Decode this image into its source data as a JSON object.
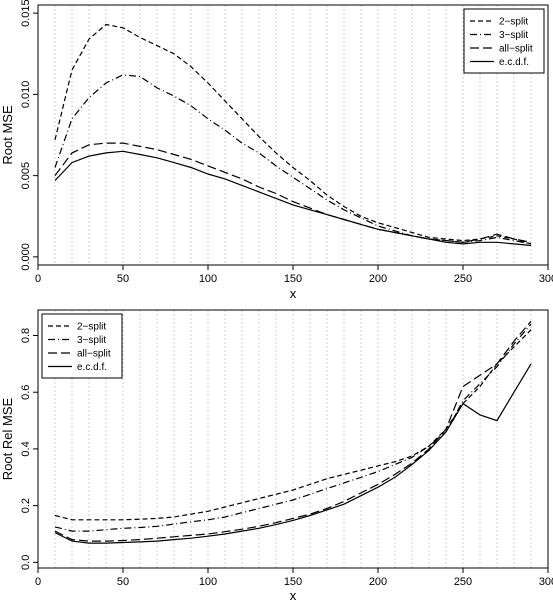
{
  "chart_data": [
    {
      "type": "line",
      "xlabel": "x",
      "ylabel": "Root MSE",
      "xlim": [
        0,
        300
      ],
      "ylim": [
        -0.0005,
        0.0155
      ],
      "xticks": [
        0,
        50,
        100,
        150,
        200,
        250,
        300
      ],
      "yticks": [
        0.0,
        0.005,
        0.01,
        0.015
      ],
      "ytick_labels": [
        "0.000",
        "0.005",
        "0.010",
        "0.015"
      ],
      "grid_x": [
        10,
        20,
        30,
        40,
        50,
        60,
        70,
        80,
        90,
        100,
        110,
        120,
        130,
        140,
        150,
        160,
        170,
        180,
        190,
        200,
        210,
        220,
        230,
        240,
        250,
        260,
        270,
        280,
        290
      ],
      "legend_position": "top-right",
      "x": [
        10,
        20,
        30,
        40,
        50,
        60,
        70,
        80,
        90,
        100,
        110,
        120,
        130,
        140,
        150,
        160,
        170,
        180,
        190,
        200,
        210,
        220,
        230,
        240,
        250,
        260,
        270,
        280,
        290
      ],
      "series": [
        {
          "name": "2−split",
          "dash": "5,3",
          "values": [
            0.0072,
            0.0115,
            0.0134,
            0.0143,
            0.0141,
            0.0135,
            0.013,
            0.0125,
            0.0117,
            0.0107,
            0.0096,
            0.0085,
            0.0074,
            0.0064,
            0.0055,
            0.0047,
            0.0038,
            0.0031,
            0.0025,
            0.0021,
            0.0018,
            0.0015,
            0.0012,
            0.0011,
            0.001,
            0.0011,
            0.0013,
            0.0011,
            0.0008
          ]
        },
        {
          "name": "3−split",
          "dash": "7,3,1,3",
          "values": [
            0.0055,
            0.0085,
            0.0098,
            0.0107,
            0.0112,
            0.0111,
            0.0104,
            0.0099,
            0.0093,
            0.0085,
            0.0078,
            0.007,
            0.0064,
            0.0056,
            0.0049,
            0.0042,
            0.0035,
            0.0029,
            0.0024,
            0.0019,
            0.0016,
            0.0013,
            0.0011,
            0.001,
            0.0009,
            0.001,
            0.0012,
            0.001,
            0.0008
          ]
        },
        {
          "name": "all−split",
          "dash": "9,4",
          "values": [
            0.005,
            0.0064,
            0.0069,
            0.007,
            0.007,
            0.0068,
            0.0066,
            0.0063,
            0.006,
            0.0056,
            0.0052,
            0.0048,
            0.0043,
            0.0039,
            0.0034,
            0.003,
            0.0026,
            0.0023,
            0.002,
            0.0017,
            0.0015,
            0.0013,
            0.0011,
            0.001,
            0.0009,
            0.0011,
            0.0014,
            0.0011,
            0.0009
          ]
        },
        {
          "name": "e.c.d.f.",
          "dash": "",
          "values": [
            0.0047,
            0.0058,
            0.0062,
            0.0064,
            0.0065,
            0.0063,
            0.0061,
            0.0058,
            0.0055,
            0.0051,
            0.0048,
            0.0044,
            0.004,
            0.0036,
            0.0032,
            0.0029,
            0.0026,
            0.0023,
            0.002,
            0.0017,
            0.0015,
            0.0013,
            0.0011,
            0.0009,
            0.0008,
            0.0009,
            0.0009,
            0.0008,
            0.0007
          ]
        }
      ]
    },
    {
      "type": "line",
      "xlabel": "x",
      "ylabel": "Root Rel MSE",
      "xlim": [
        0,
        300
      ],
      "ylim": [
        -0.02,
        0.89
      ],
      "xticks": [
        0,
        50,
        100,
        150,
        200,
        250,
        300
      ],
      "yticks": [
        0.0,
        0.2,
        0.4,
        0.6,
        0.8
      ],
      "ytick_labels": [
        "0.0",
        "0.2",
        "0.4",
        "0.6",
        "0.8"
      ],
      "grid_x": [
        10,
        20,
        30,
        40,
        50,
        60,
        70,
        80,
        90,
        100,
        110,
        120,
        130,
        140,
        150,
        160,
        170,
        180,
        190,
        200,
        210,
        220,
        230,
        240,
        250,
        260,
        270,
        280,
        290
      ],
      "legend_position": "top-left",
      "x": [
        10,
        20,
        30,
        40,
        50,
        60,
        70,
        80,
        90,
        100,
        110,
        120,
        130,
        140,
        150,
        160,
        170,
        180,
        190,
        200,
        210,
        220,
        230,
        240,
        250,
        260,
        270,
        280,
        290
      ],
      "series": [
        {
          "name": "2−split",
          "dash": "5,3",
          "values": [
            0.165,
            0.15,
            0.15,
            0.15,
            0.15,
            0.152,
            0.155,
            0.16,
            0.17,
            0.18,
            0.195,
            0.21,
            0.225,
            0.24,
            0.255,
            0.275,
            0.295,
            0.31,
            0.325,
            0.34,
            0.355,
            0.375,
            0.41,
            0.47,
            0.56,
            0.62,
            0.7,
            0.76,
            0.82
          ]
        },
        {
          "name": "3−split",
          "dash": "7,3,1,3",
          "values": [
            0.125,
            0.11,
            0.11,
            0.115,
            0.12,
            0.123,
            0.127,
            0.135,
            0.143,
            0.15,
            0.16,
            0.175,
            0.19,
            0.205,
            0.22,
            0.24,
            0.26,
            0.28,
            0.3,
            0.32,
            0.345,
            0.37,
            0.41,
            0.46,
            0.57,
            0.63,
            0.69,
            0.77,
            0.84
          ]
        },
        {
          "name": "all−split",
          "dash": "9,4",
          "values": [
            0.11,
            0.08,
            0.075,
            0.075,
            0.077,
            0.08,
            0.085,
            0.09,
            0.095,
            0.1,
            0.108,
            0.117,
            0.127,
            0.14,
            0.155,
            0.17,
            0.19,
            0.215,
            0.245,
            0.275,
            0.31,
            0.35,
            0.4,
            0.47,
            0.62,
            0.66,
            0.7,
            0.78,
            0.85
          ]
        },
        {
          "name": "e.c.d.f.",
          "dash": "",
          "values": [
            0.105,
            0.075,
            0.068,
            0.068,
            0.07,
            0.072,
            0.075,
            0.08,
            0.085,
            0.092,
            0.1,
            0.11,
            0.12,
            0.133,
            0.148,
            0.165,
            0.185,
            0.205,
            0.235,
            0.265,
            0.3,
            0.345,
            0.395,
            0.46,
            0.56,
            0.52,
            0.5,
            0.6,
            0.7
          ]
        }
      ]
    }
  ]
}
